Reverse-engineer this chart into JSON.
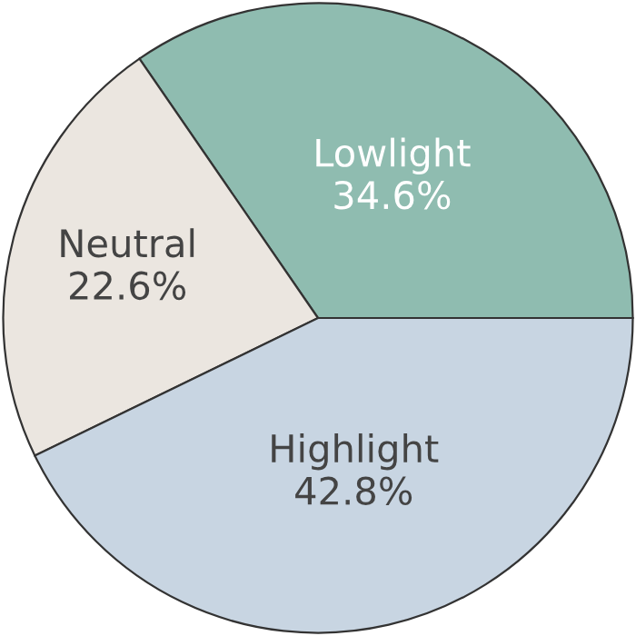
{
  "chart_data": {
    "type": "pie",
    "categories": [
      "Lowlight",
      "Neutral",
      "Highlight"
    ],
    "values": [
      34.6,
      22.6,
      42.8
    ],
    "colors": [
      "#8fbcb0",
      "#ebe6e0",
      "#c8d5e2"
    ],
    "value_labels": [
      "34.6%",
      "22.6%",
      "42.8%"
    ]
  }
}
